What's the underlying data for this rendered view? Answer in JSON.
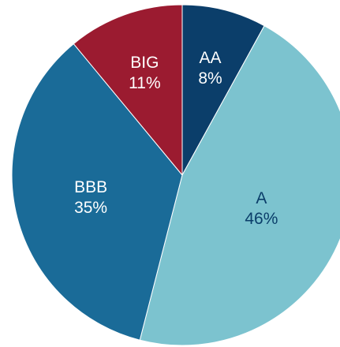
{
  "chart_data": {
    "type": "pie",
    "title": "",
    "slices": [
      {
        "label": "AA",
        "value": 8,
        "value_label": "8%",
        "color": "#0b3e6a",
        "label_color": "#ffffff"
      },
      {
        "label": "A",
        "value": 46,
        "value_label": "46%",
        "color": "#7cc3cf",
        "label_color": "#0b3e6a"
      },
      {
        "label": "BBB",
        "value": 35,
        "value_label": "35%",
        "color": "#1a6b98",
        "label_color": "#ffffff"
      },
      {
        "label": "BIG",
        "value": 11,
        "value_label": "11%",
        "color": "#9b1b30",
        "label_color": "#ffffff"
      }
    ],
    "start": "12 o'clock",
    "direction": "clockwise",
    "legend": "none",
    "data_labels": "inside"
  }
}
